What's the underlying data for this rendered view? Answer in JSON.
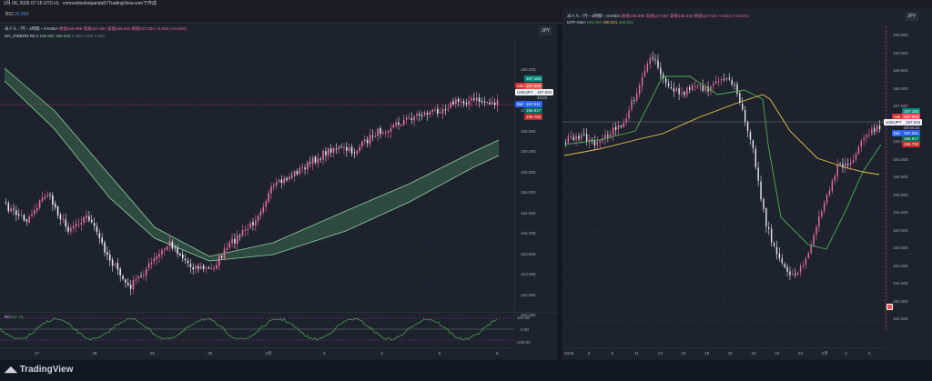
{
  "topbar": {
    "text": "2月 06, 2026 07:15 UTC+9、crimsonlookoipanda57TradingView.comで作成"
  },
  "rci_header": {
    "label": "RCI",
    "value": "20.804"
  },
  "left_chart": {
    "currency_button": "JPY",
    "legend_line1": {
      "symbol": "米ドル／円・1時間・OANDA",
      "open": "始値156.999",
      "high": "高値157.067",
      "low": "安値156.932",
      "close": "終値157.034",
      "change": "+0.010 (+0.01%)"
    },
    "legend_line2": {
      "name": "MA_RIBBON R5.2",
      "v1": "156.692",
      "v2": "156.343",
      "v3": "0.000",
      "v4": "0.000",
      "v5": "0.000"
    },
    "price_ticks": [
      "158.000",
      "157.500",
      "157.000",
      "156.500",
      "156.000",
      "155.500",
      "155.000",
      "154.500",
      "154.000",
      "153.500",
      "153.000",
      "152.500",
      "152.000"
    ],
    "price_tags": {
      "ask": "157.183",
      "ask_label": "Ask",
      "ma1": "157.058",
      "symbol": "USDJPY",
      "last": "157.034",
      "countdown": "44:21",
      "bid_label": "Bid",
      "bid": "157.011",
      "ma2": "156.917",
      "ma3": "156.782"
    },
    "rci_legend": {
      "label": "RCI",
      "value": "97.75"
    },
    "rci_ticks": [
      "100.00",
      "0.00",
      "−100.00"
    ],
    "x_ticks": [
      "27",
      "28",
      "29",
      "30",
      "2月",
      "3",
      "4",
      "5",
      "6"
    ],
    "color_up": "#ec6fa1",
    "color_down": "#e9e9ef"
  },
  "right_chart": {
    "currency_button": "JPY",
    "legend_line1": {
      "symbol": "米ドル／円・4時間・OANDA",
      "open": "始値156.999",
      "high": "高値157.067",
      "low": "安値156.932",
      "close": "終値157.034",
      "change": "+0.010 (+0.01%)"
    },
    "legend_line2": {
      "name": "MTF-SMA",
      "v1": "156.343",
      "v2": "155.631",
      "v3": "156.932"
    },
    "price_ticks": [
      "159.500",
      "159.000",
      "158.500",
      "158.000",
      "157.500",
      "157.000",
      "156.500",
      "156.000",
      "155.500",
      "155.000",
      "154.500",
      "154.000",
      "153.500",
      "153.000",
      "152.500",
      "152.000",
      "151.500"
    ],
    "price_tags": {
      "ask": "157.183",
      "ask_label": "Ask",
      "ma1": "157.058",
      "symbol": "USDJPY",
      "last": "157.034",
      "countdown": "03:44:21",
      "bid_label": "Bid",
      "bid": "157.011",
      "ma2": "156.917",
      "ma3": "156.782"
    },
    "x_ticks": [
      "2026",
      "6",
      "8",
      "11",
      "13",
      "15",
      "18",
      "20",
      "22",
      "24",
      "26",
      "2月",
      "4",
      "6"
    ],
    "sma_fast_color": "#4caf50",
    "sma_slow_color": "#e6c84a"
  },
  "footer": {
    "brand": "TradingView"
  }
}
